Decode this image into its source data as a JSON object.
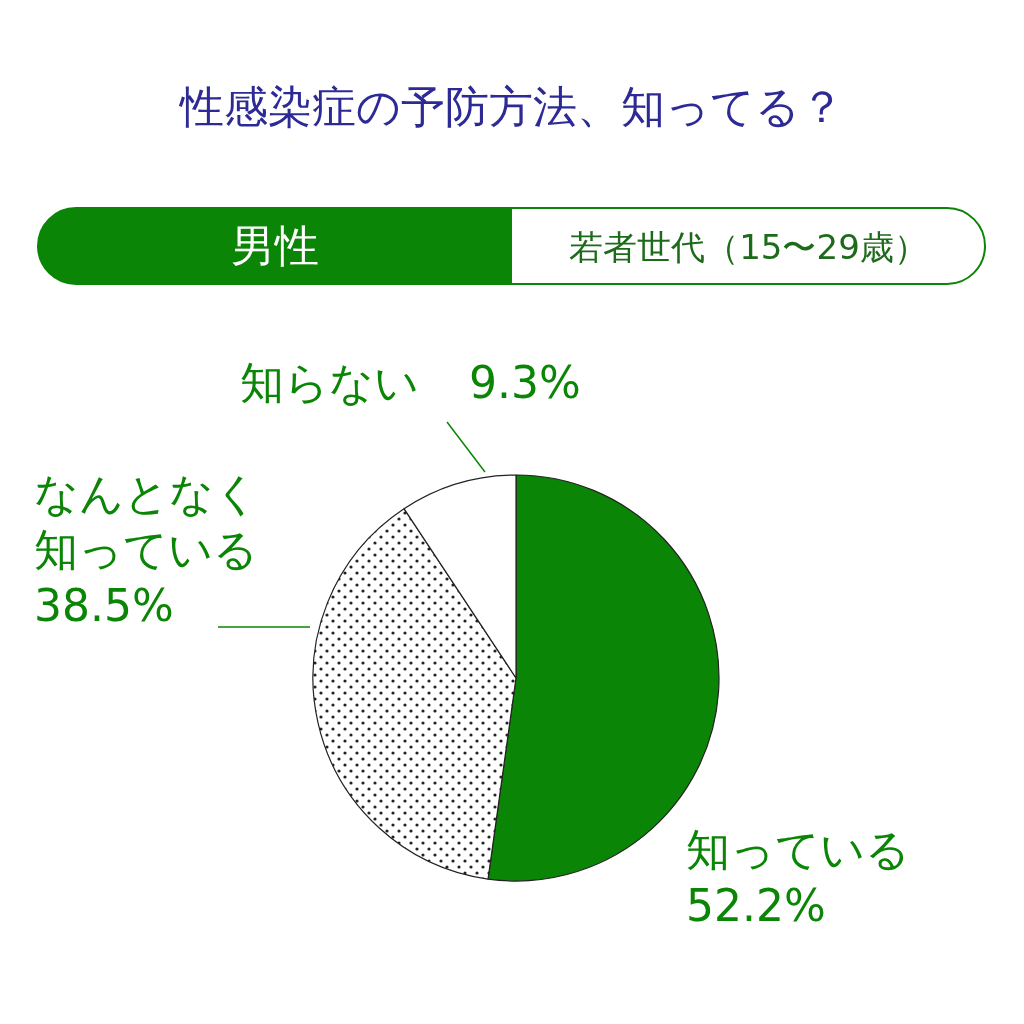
{
  "chart_data": {
    "type": "pie",
    "title": "性感染症の予防方法、知ってる？",
    "subtitle": "男性",
    "annotations": [
      "若者世代（15〜29歳）"
    ],
    "categories": [
      "知っている",
      "なんとなく知っている",
      "知らない"
    ],
    "values": [
      52.2,
      38.5,
      9.3
    ],
    "colors": [
      "#0a8505",
      "#222222",
      "#ffffff"
    ],
    "value_labels": [
      "52.2%",
      "38.5%",
      "9.3%"
    ]
  }
}
